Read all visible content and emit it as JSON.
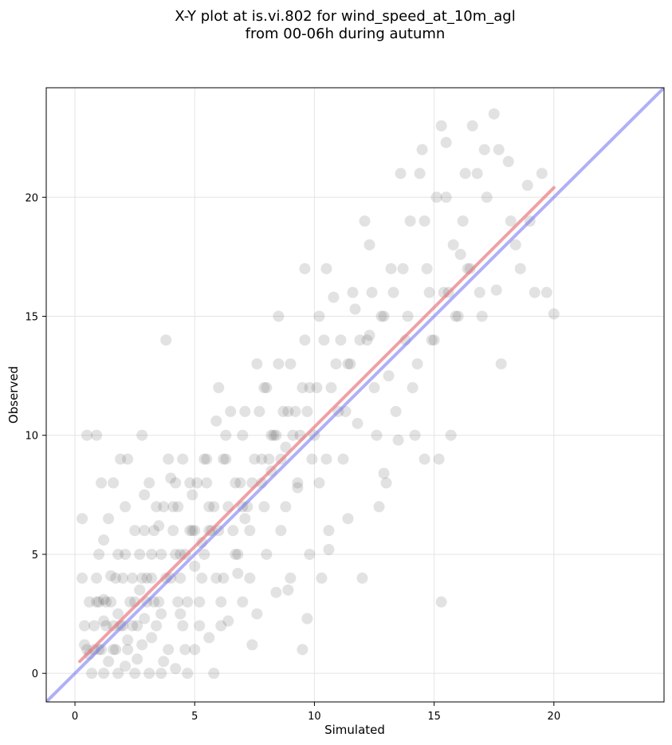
{
  "chart_data": {
    "type": "scatter",
    "title": "X-Y plot at is.vi.802 for wind_speed_at_10m_agl",
    "subtitle": "from 00-06h during autumn",
    "xlabel": "Simulated",
    "ylabel": "Observed",
    "xlim": [
      -1.2,
      24.6
    ],
    "ylim": [
      -1.2,
      24.6
    ],
    "xticks": [
      0,
      5,
      10,
      15,
      20
    ],
    "yticks": [
      0,
      5,
      10,
      15,
      20
    ],
    "grid": true,
    "colors": {
      "points": "#333333",
      "fit_line": "#e8797f",
      "identity_line": "#7b7bf0"
    },
    "fit_line": {
      "x": [
        0.2,
        20.0
      ],
      "y": [
        0.5,
        20.4
      ]
    },
    "identity_line": {
      "x": [
        -1.2,
        24.6
      ],
      "y": [
        -1.2,
        24.6
      ]
    },
    "points": [
      [
        0.3,
        6.5
      ],
      [
        0.5,
        10
      ],
      [
        0.9,
        10
      ],
      [
        0.3,
        4
      ],
      [
        0.4,
        2
      ],
      [
        0.5,
        1
      ],
      [
        0.6,
        0.8
      ],
      [
        0.8,
        2
      ],
      [
        0.9,
        3
      ],
      [
        1.0,
        1
      ],
      [
        0.7,
        0
      ],
      [
        1.2,
        0
      ],
      [
        1.0,
        5
      ],
      [
        1.1,
        8
      ],
      [
        1.2,
        2.2
      ],
      [
        1.3,
        3
      ],
      [
        1.5,
        4.1
      ],
      [
        1.6,
        1
      ],
      [
        1.2,
        5.6
      ],
      [
        1.4,
        6.5
      ],
      [
        1.8,
        0
      ],
      [
        2.1,
        0.3
      ],
      [
        1.6,
        8
      ],
      [
        1.9,
        9
      ],
      [
        2.2,
        9
      ],
      [
        2.1,
        7
      ],
      [
        1.8,
        5
      ],
      [
        2.5,
        3
      ],
      [
        2.4,
        2
      ],
      [
        2.0,
        4
      ],
      [
        2.2,
        1.4
      ],
      [
        2.6,
        0.6
      ],
      [
        2.8,
        1.2
      ],
      [
        2.9,
        2.3
      ],
      [
        2.7,
        3.5
      ],
      [
        2.5,
        6
      ],
      [
        2.9,
        7.5
      ],
      [
        2.8,
        10
      ],
      [
        3.0,
        4
      ],
      [
        3.2,
        5
      ],
      [
        3.1,
        8
      ],
      [
        3.4,
        7
      ],
      [
        3.3,
        3
      ],
      [
        3.6,
        2.5
      ],
      [
        3.7,
        0.5
      ],
      [
        3.8,
        14
      ],
      [
        3.5,
        6.2
      ],
      [
        3.9,
        9
      ],
      [
        4.0,
        8.2
      ],
      [
        4.1,
        7
      ],
      [
        4.2,
        5
      ],
      [
        4.4,
        4
      ],
      [
        4.3,
        3
      ],
      [
        4.5,
        2
      ],
      [
        4.6,
        1
      ],
      [
        4.7,
        0
      ],
      [
        4.8,
        6
      ],
      [
        4.9,
        7.5
      ],
      [
        4.5,
        9
      ],
      [
        5.0,
        4.5
      ],
      [
        5.2,
        3
      ],
      [
        5.3,
        5.5
      ],
      [
        5.4,
        9
      ],
      [
        5.5,
        8
      ],
      [
        5.6,
        7
      ],
      [
        5.7,
        6
      ],
      [
        5.8,
        0
      ],
      [
        5.9,
        10.6
      ],
      [
        6.0,
        12
      ],
      [
        6.1,
        2
      ],
      [
        6.2,
        4
      ],
      [
        6.3,
        9
      ],
      [
        6.5,
        11
      ],
      [
        6.7,
        8
      ],
      [
        6.8,
        5
      ],
      [
        7.0,
        10
      ],
      [
        7.1,
        6.5
      ],
      [
        7.3,
        4
      ],
      [
        7.4,
        1.2
      ],
      [
        7.5,
        9
      ],
      [
        7.6,
        13
      ],
      [
        7.7,
        11
      ],
      [
        7.9,
        7
      ],
      [
        8.0,
        12
      ],
      [
        8.2,
        8.5
      ],
      [
        8.3,
        10
      ],
      [
        8.5,
        15
      ],
      [
        8.6,
        6
      ],
      [
        8.8,
        9.5
      ],
      [
        8.9,
        3.5
      ],
      [
        9.0,
        13
      ],
      [
        9.2,
        11
      ],
      [
        9.3,
        7.8
      ],
      [
        9.5,
        1
      ],
      [
        9.6,
        17
      ],
      [
        9.7,
        2.3
      ],
      [
        9.8,
        12
      ],
      [
        10.0,
        10
      ],
      [
        10.2,
        8
      ],
      [
        10.3,
        4
      ],
      [
        10.4,
        14
      ],
      [
        10.5,
        17
      ],
      [
        10.6,
        6
      ],
      [
        10.8,
        15.8
      ],
      [
        11.0,
        11
      ],
      [
        11.2,
        9
      ],
      [
        11.4,
        13
      ],
      [
        11.6,
        16
      ],
      [
        11.8,
        10.5
      ],
      [
        12.0,
        4
      ],
      [
        12.1,
        19
      ],
      [
        12.3,
        14.2
      ],
      [
        12.5,
        12
      ],
      [
        12.7,
        7
      ],
      [
        12.9,
        15
      ],
      [
        13.0,
        8
      ],
      [
        13.2,
        17
      ],
      [
        13.4,
        11
      ],
      [
        13.6,
        21
      ],
      [
        13.8,
        14
      ],
      [
        14.0,
        19
      ],
      [
        14.2,
        10
      ],
      [
        14.4,
        21
      ],
      [
        14.5,
        22
      ],
      [
        14.6,
        9
      ],
      [
        14.8,
        16
      ],
      [
        15.0,
        14
      ],
      [
        15.1,
        20
      ],
      [
        15.2,
        9
      ],
      [
        15.3,
        23
      ],
      [
        15.5,
        22.3
      ],
      [
        15.6,
        16
      ],
      [
        15.8,
        18
      ],
      [
        16.0,
        15
      ],
      [
        16.2,
        19
      ],
      [
        16.4,
        17
      ],
      [
        16.6,
        23
      ],
      [
        16.8,
        21
      ],
      [
        17.0,
        15
      ],
      [
        17.2,
        20
      ],
      [
        17.5,
        23.5
      ],
      [
        17.7,
        22
      ],
      [
        17.8,
        13
      ],
      [
        18.2,
        19
      ],
      [
        18.6,
        17
      ],
      [
        18.9,
        20.5
      ],
      [
        19.2,
        16
      ],
      [
        19.5,
        21
      ],
      [
        19.7,
        16
      ],
      [
        20.0,
        15.1
      ],
      [
        15.3,
        3
      ],
      [
        15.7,
        10
      ],
      [
        12.4,
        16
      ],
      [
        11.9,
        14
      ],
      [
        13.1,
        12.5
      ],
      [
        14.3,
        13
      ],
      [
        16.1,
        17.6
      ],
      [
        10.9,
        13
      ],
      [
        9.9,
        9
      ],
      [
        8.7,
        11
      ],
      [
        1.1,
        1
      ],
      [
        1.3,
        2
      ],
      [
        1.5,
        3
      ],
      [
        1.7,
        1
      ],
      [
        1.9,
        2
      ],
      [
        2.3,
        3
      ],
      [
        2.6,
        2
      ],
      [
        3.0,
        3
      ],
      [
        3.2,
        4
      ],
      [
        3.5,
        3
      ],
      [
        3.8,
        4
      ],
      [
        4.1,
        6
      ],
      [
        4.4,
        5
      ],
      [
        4.7,
        3
      ],
      [
        5.0,
        6
      ],
      [
        5.3,
        4
      ],
      [
        5.6,
        6
      ],
      [
        6.0,
        6
      ],
      [
        6.4,
        7
      ],
      [
        6.9,
        8
      ],
      [
        7.2,
        7
      ],
      [
        7.8,
        8
      ],
      [
        8.1,
        9
      ],
      [
        8.4,
        10
      ],
      [
        8.9,
        11
      ],
      [
        9.4,
        10
      ],
      [
        9.7,
        11
      ],
      [
        10.1,
        12
      ],
      [
        10.7,
        12
      ],
      [
        11.1,
        14
      ],
      [
        11.5,
        13
      ],
      [
        12.2,
        14
      ],
      [
        12.8,
        15
      ],
      [
        13.3,
        16
      ],
      [
        13.9,
        15
      ],
      [
        14.7,
        17
      ],
      [
        15.4,
        16
      ],
      [
        16.5,
        17
      ],
      [
        0.8,
        1
      ],
      [
        1.4,
        0.5
      ],
      [
        2.0,
        2
      ],
      [
        2.4,
        4
      ],
      [
        2.7,
        5
      ],
      [
        3.3,
        6
      ],
      [
        3.6,
        5
      ],
      [
        4.0,
        4
      ],
      [
        4.3,
        7
      ],
      [
        4.9,
        6
      ],
      [
        5.1,
        8
      ],
      [
        5.4,
        5
      ],
      [
        5.8,
        7
      ],
      [
        6.2,
        9
      ],
      [
        6.6,
        6
      ],
      [
        7.0,
        7
      ],
      [
        7.4,
        8
      ],
      [
        7.8,
        9
      ],
      [
        8.2,
        10
      ],
      [
        8.6,
        9
      ],
      [
        9.1,
        10
      ],
      [
        9.5,
        12
      ],
      [
        1.0,
        3
      ],
      [
        1.6,
        2
      ],
      [
        2.2,
        1
      ],
      [
        2.8,
        4
      ],
      [
        3.4,
        2
      ],
      [
        3.9,
        1
      ],
      [
        4.6,
        5
      ],
      [
        5.2,
        2
      ],
      [
        6.1,
        3
      ],
      [
        6.7,
        5
      ],
      [
        7.3,
        6
      ],
      [
        8.0,
        5
      ],
      [
        8.8,
        7
      ],
      [
        9.3,
        8
      ],
      [
        10.5,
        9
      ],
      [
        11.3,
        11
      ],
      [
        12.6,
        10
      ],
      [
        13.5,
        9.8
      ],
      [
        14.1,
        12
      ],
      [
        14.9,
        14
      ],
      [
        15.9,
        15
      ],
      [
        16.9,
        16
      ],
      [
        17.6,
        16.1
      ],
      [
        18.4,
        18
      ],
      [
        0.6,
        3
      ],
      [
        0.9,
        4
      ],
      [
        1.2,
        3.1
      ],
      [
        1.7,
        4
      ],
      [
        2.1,
        5
      ],
      [
        2.9,
        6
      ],
      [
        3.7,
        7
      ],
      [
        4.2,
        8
      ],
      [
        4.8,
        8
      ],
      [
        5.5,
        9
      ],
      [
        6.3,
        10
      ],
      [
        7.1,
        11
      ],
      [
        7.9,
        12
      ],
      [
        8.5,
        13
      ],
      [
        9.6,
        14
      ],
      [
        10.2,
        15
      ],
      [
        11.7,
        15.3
      ],
      [
        12.3,
        18
      ],
      [
        13.7,
        17
      ],
      [
        14.6,
        19
      ],
      [
        15.5,
        20
      ],
      [
        16.3,
        21
      ],
      [
        17.1,
        22
      ],
      [
        18.1,
        21.5
      ],
      [
        19.0,
        19
      ],
      [
        2.5,
        0
      ],
      [
        3.1,
        0
      ],
      [
        3.6,
        0
      ],
      [
        4.2,
        0.2
      ],
      [
        5.0,
        1
      ],
      [
        5.6,
        1.5
      ],
      [
        6.4,
        2.2
      ],
      [
        7.0,
        3
      ],
      [
        7.6,
        2.5
      ],
      [
        8.4,
        3.4
      ],
      [
        9.0,
        4
      ],
      [
        9.8,
        5
      ],
      [
        10.6,
        5.2
      ],
      [
        11.4,
        6.5
      ],
      [
        12.9,
        8.4
      ],
      [
        0.4,
        1.2
      ],
      [
        1.8,
        2.5
      ],
      [
        3.2,
        1.5
      ],
      [
        4.4,
        2.5
      ],
      [
        5.9,
        4
      ],
      [
        6.8,
        4.2
      ]
    ]
  }
}
